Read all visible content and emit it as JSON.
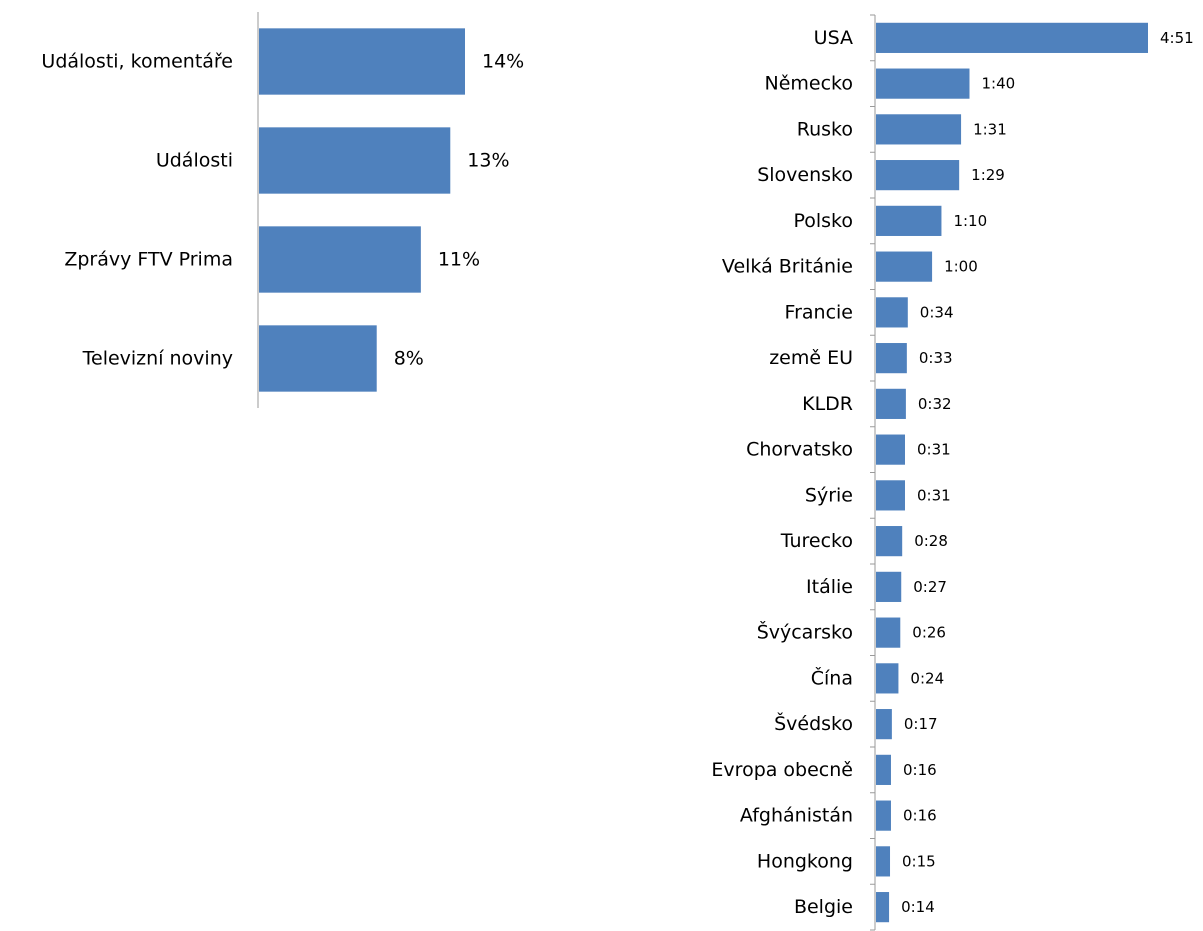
{
  "colors": {
    "bar": "#4F81BD",
    "axis": "#9A9A9A",
    "text": "#000000"
  },
  "chart_data": [
    {
      "type": "bar",
      "orientation": "horizontal",
      "categories": [
        "Události, komentáře",
        "Události",
        "Zprávy FTV Prima",
        "Televizní noviny"
      ],
      "values": [
        14,
        13,
        11,
        8
      ],
      "value_labels": [
        "14%",
        "13%",
        "11%",
        "8%"
      ],
      "unit": "%",
      "title": "",
      "xlabel": "",
      "ylabel": "",
      "grid": false,
      "legend": "none"
    },
    {
      "type": "bar",
      "orientation": "horizontal",
      "categories": [
        "USA",
        "Německo",
        "Rusko",
        "Slovensko",
        "Polsko",
        "Velká Británie",
        "Francie",
        "země EU",
        "KLDR",
        "Chorvatsko",
        "Sýrie",
        "Turecko",
        "Itálie",
        "Švýcarsko",
        "Čína",
        "Švédsko",
        "Evropa obecně",
        "Afghánistán",
        "Hongkong",
        "Belgie"
      ],
      "values": [
        4.85,
        1.667,
        1.517,
        1.483,
        1.167,
        1.0,
        0.567,
        0.55,
        0.533,
        0.517,
        0.517,
        0.467,
        0.45,
        0.433,
        0.4,
        0.283,
        0.267,
        0.267,
        0.25,
        0.233
      ],
      "value_labels": [
        "4:51",
        "1:40",
        "1:31",
        "1:29",
        "1:10",
        "1:00",
        "0:34",
        "0:33",
        "0:32",
        "0:31",
        "0:31",
        "0:28",
        "0:27",
        "0:26",
        "0:24",
        "0:17",
        "0:16",
        "0:16",
        "0:15",
        "0:14"
      ],
      "unit": "h:mm",
      "title": "",
      "xlabel": "",
      "ylabel": "",
      "grid": false,
      "legend": "none"
    }
  ]
}
